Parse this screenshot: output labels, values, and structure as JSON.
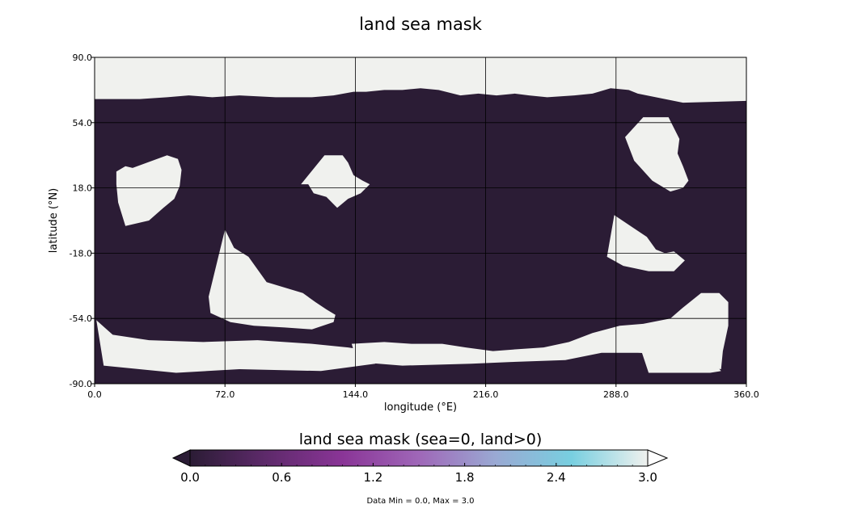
{
  "chart_data": {
    "type": "heatmap",
    "title": "land sea mask",
    "xlabel": "longitude (°E)",
    "ylabel": "latitude (°N)",
    "xlim": [
      0,
      360
    ],
    "ylim": [
      -90,
      90
    ],
    "xticks": [
      "0.0",
      "72.0",
      "144.0",
      "216.0",
      "288.0",
      "360.0"
    ],
    "yticks": [
      "90.0",
      "54.0",
      "18.0",
      "-18.0",
      "-54.0",
      "-90.0"
    ],
    "xtick_values": [
      0,
      72,
      144,
      216,
      288,
      360
    ],
    "ytick_values": [
      90,
      54,
      18,
      -18,
      -54,
      -90
    ],
    "grid": true,
    "sea_color": "#2b1c35",
    "land_color": "#f0f1ee",
    "land_regions_lonlat": [
      [
        [
          0,
          90
        ],
        [
          360,
          90
        ],
        [
          360,
          66
        ],
        [
          325,
          65
        ],
        [
          310,
          68
        ],
        [
          300,
          70
        ],
        [
          295,
          72
        ],
        [
          285,
          73
        ],
        [
          275,
          70
        ],
        [
          265,
          69
        ],
        [
          250,
          68
        ],
        [
          240,
          69
        ],
        [
          232,
          70
        ],
        [
          222,
          69
        ],
        [
          212,
          70
        ],
        [
          202,
          69
        ],
        [
          190,
          72
        ],
        [
          180,
          73
        ],
        [
          170,
          72
        ],
        [
          160,
          72
        ],
        [
          150,
          71
        ],
        [
          143,
          71
        ],
        [
          132,
          69
        ],
        [
          120,
          68
        ],
        [
          100,
          68
        ],
        [
          80,
          69
        ],
        [
          65,
          68
        ],
        [
          52,
          69
        ],
        [
          40,
          68
        ],
        [
          25,
          67
        ],
        [
          10,
          67
        ],
        [
          0,
          67
        ]
      ],
      [
        [
          21,
          29
        ],
        [
          40,
          36
        ],
        [
          46,
          34
        ],
        [
          48,
          28
        ],
        [
          47,
          19
        ],
        [
          44,
          12
        ],
        [
          38,
          7
        ],
        [
          30,
          0
        ],
        [
          17,
          -3
        ],
        [
          13,
          10
        ],
        [
          12,
          20
        ],
        [
          12,
          27
        ],
        [
          17,
          30
        ]
      ],
      [
        [
          114,
          20
        ],
        [
          127,
          36
        ],
        [
          137,
          36
        ],
        [
          140,
          32
        ],
        [
          143,
          25
        ],
        [
          148,
          22
        ],
        [
          152,
          20
        ],
        [
          147,
          15
        ],
        [
          140,
          12
        ],
        [
          134,
          7
        ],
        [
          128,
          13
        ],
        [
          121,
          15
        ],
        [
          118,
          20
        ]
      ],
      [
        [
          63,
          -42
        ],
        [
          72,
          -5
        ],
        [
          77,
          -15
        ],
        [
          85,
          -20
        ],
        [
          95,
          -34
        ],
        [
          115,
          -40
        ],
        [
          122,
          -45
        ],
        [
          128,
          -49
        ],
        [
          133,
          -52
        ],
        [
          132,
          -56
        ],
        [
          120,
          -60
        ],
        [
          105,
          -59
        ],
        [
          88,
          -58
        ],
        [
          75,
          -56
        ],
        [
          64,
          -51
        ]
      ],
      [
        [
          142,
          -68
        ],
        [
          145,
          -78
        ],
        [
          170,
          -80
        ],
        [
          208,
          -79
        ],
        [
          230,
          -78
        ],
        [
          260,
          -77
        ],
        [
          280,
          -73
        ],
        [
          300,
          -73
        ],
        [
          326,
          -74
        ],
        [
          330,
          -80
        ],
        [
          346,
          -82
        ],
        [
          347,
          -72
        ],
        [
          350,
          -58
        ],
        [
          350,
          -45
        ],
        [
          345,
          -40
        ],
        [
          335,
          -40
        ],
        [
          325,
          -48
        ],
        [
          318,
          -54
        ],
        [
          303,
          -57
        ],
        [
          290,
          -58
        ],
        [
          275,
          -62
        ],
        [
          262,
          -67
        ],
        [
          248,
          -70
        ],
        [
          233,
          -71
        ],
        [
          220,
          -72
        ],
        [
          205,
          -70
        ],
        [
          192,
          -68
        ],
        [
          175,
          -68
        ],
        [
          160,
          -67
        ]
      ],
      [
        [
          293,
          46
        ],
        [
          303,
          57
        ],
        [
          317,
          57
        ],
        [
          323,
          45
        ],
        [
          322,
          37
        ],
        [
          325,
          30
        ],
        [
          328,
          22
        ],
        [
          325,
          18
        ],
        [
          318,
          16
        ],
        [
          308,
          22
        ],
        [
          298,
          33
        ]
      ],
      [
        [
          283,
          -20
        ],
        [
          287,
          3
        ],
        [
          299,
          -5
        ],
        [
          305,
          -9
        ],
        [
          310,
          -16
        ],
        [
          315,
          -18
        ],
        [
          320,
          -17
        ],
        [
          326,
          -22
        ],
        [
          320,
          -28
        ],
        [
          306,
          -28
        ],
        [
          292,
          -25
        ]
      ],
      [
        [
          1,
          -55
        ],
        [
          5,
          -80
        ],
        [
          45,
          -84
        ],
        [
          80,
          -82
        ],
        [
          125,
          -83
        ],
        [
          155,
          -79
        ],
        [
          160,
          -73
        ],
        [
          140,
          -70
        ],
        [
          120,
          -68
        ],
        [
          90,
          -66
        ],
        [
          60,
          -67
        ],
        [
          30,
          -66
        ],
        [
          10,
          -63
        ]
      ],
      [
        [
          300,
          -66
        ],
        [
          306,
          -84
        ],
        [
          340,
          -84
        ],
        [
          346,
          -83
        ],
        [
          340,
          -76
        ],
        [
          324,
          -72
        ],
        [
          311,
          -70
        ]
      ]
    ],
    "colorbar": {
      "title": "land sea mask (sea=0, land>0)",
      "ticks": [
        "0.0",
        "0.6",
        "1.2",
        "1.8",
        "2.4",
        "3.0"
      ],
      "tick_values": [
        0,
        0.6,
        1.2,
        1.8,
        2.4,
        3.0
      ],
      "vmin": 0,
      "vmax": 3.0,
      "colormap": "dense_r",
      "stops": [
        "#2b1c35",
        "#5e2a6b",
        "#8a3597",
        "#9f67b8",
        "#9aa9d3",
        "#78cfe0",
        "#f0f1ee"
      ]
    },
    "data_min": 0.0,
    "data_max": 3.0
  },
  "footer": "Data Min = 0.0, Max = 3.0"
}
